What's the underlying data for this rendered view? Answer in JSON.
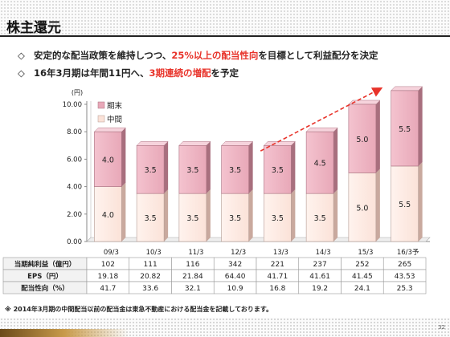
{
  "header": {
    "title": "株主還元"
  },
  "bullets": [
    {
      "mark": "◇",
      "pre": "安定的な配当政策を維持しつつ、",
      "hl": "25%以上の配当性向",
      "post": "を目標として利益配分を決定"
    },
    {
      "mark": "◇",
      "pre": "16年3月期は年間11円へ、",
      "hl": "3期連続の増配",
      "post": "を予定"
    }
  ],
  "colors": {
    "period_end": "#e8a8b8",
    "interim": "#fbe2d8",
    "arrow": "#e8332a",
    "highlight": "#e8332a"
  },
  "chart_data": {
    "type": "bar",
    "stacked": true,
    "ylabel": "(円)",
    "ylim": [
      0,
      10
    ],
    "yticks": [
      "0.00",
      "2.00",
      "4.00",
      "6.00",
      "8.00",
      "10.00"
    ],
    "categories": [
      "09/3",
      "10/3",
      "11/3",
      "12/3",
      "13/3",
      "14/3",
      "15/3",
      "16/3予"
    ],
    "series": [
      {
        "name": "中間",
        "values": [
          4.0,
          3.5,
          3.5,
          3.5,
          3.5,
          3.5,
          5.0,
          5.5
        ],
        "labels": [
          "4.0",
          "3.5",
          "3.5",
          "3.5",
          "3.5",
          "3.5",
          "5.0",
          "5.5"
        ]
      },
      {
        "name": "期末",
        "values": [
          4.0,
          3.5,
          3.5,
          3.5,
          3.5,
          4.5,
          5.0,
          5.5
        ],
        "labels": [
          "4.0",
          "3.5",
          "3.5",
          "3.5",
          "3.5",
          "4.5",
          "5.0",
          "5.5"
        ]
      }
    ],
    "legend": [
      "期末",
      "中間"
    ],
    "legend_position": "top-left",
    "grid": false,
    "trend_arrow": true
  },
  "table": {
    "rows": [
      {
        "label": "当期純利益（億円）",
        "values": [
          "102",
          "111",
          "116",
          "342",
          "221",
          "237",
          "252",
          "265"
        ]
      },
      {
        "label": "EPS（円）",
        "values": [
          "19.18",
          "20.82",
          "21.84",
          "64.40",
          "41.71",
          "41.61",
          "41.45",
          "43.53"
        ]
      },
      {
        "label": "配当性向（%）",
        "values": [
          "41.7",
          "33.6",
          "32.1",
          "10.9",
          "16.8",
          "19.2",
          "24.1",
          "25.3"
        ]
      }
    ]
  },
  "footnote": "※ 2014年3月期の中間配当以前の配当金は東急不動産における配当金を記載しております。",
  "page_number": "32"
}
